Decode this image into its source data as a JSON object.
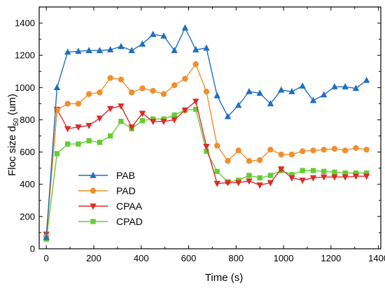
{
  "chart_data": {
    "type": "line",
    "title": "",
    "xlabel": "Time (s)",
    "ylabel_main": "Floc size d",
    "ylabel_sub": "50",
    "ylabel_unit": " (um)",
    "xlim": [
      -30,
      1410
    ],
    "ylim": [
      0,
      1500
    ],
    "xticks": [
      0,
      200,
      400,
      600,
      800,
      1000,
      1200,
      1400
    ],
    "yticks": [
      0,
      200,
      400,
      600,
      800,
      1000,
      1200,
      1400
    ],
    "grid": false,
    "legend_position": "center-left",
    "x": [
      0,
      45,
      90,
      135,
      180,
      225,
      270,
      315,
      360,
      405,
      450,
      495,
      540,
      585,
      630,
      675,
      720,
      765,
      810,
      855,
      900,
      945,
      990,
      1035,
      1080,
      1125,
      1170,
      1215,
      1260,
      1305,
      1350
    ],
    "series": [
      {
        "name": "PAB",
        "color": "#1f6fbf",
        "marker": "triangle-up",
        "values": [
          70,
          1000,
          1220,
          1225,
          1230,
          1230,
          1235,
          1255,
          1230,
          1270,
          1330,
          1320,
          1230,
          1370,
          1235,
          1245,
          950,
          820,
          890,
          975,
          965,
          900,
          985,
          975,
          1010,
          920,
          955,
          1005,
          1005,
          995,
          1045
        ]
      },
      {
        "name": "PAD",
        "color": "#f28e2b",
        "marker": "circle",
        "values": [
          75,
          860,
          900,
          900,
          960,
          970,
          1060,
          1050,
          970,
          995,
          980,
          960,
          1015,
          1055,
          1145,
          975,
          640,
          545,
          610,
          545,
          550,
          615,
          585,
          585,
          605,
          610,
          615,
          620,
          610,
          625,
          615
        ]
      },
      {
        "name": "CPAA",
        "color": "#dd2a2a",
        "marker": "triangle-down",
        "values": [
          90,
          865,
          745,
          755,
          765,
          810,
          870,
          885,
          755,
          840,
          790,
          790,
          800,
          860,
          915,
          635,
          405,
          410,
          410,
          420,
          395,
          410,
          495,
          440,
          425,
          440,
          445,
          445,
          445,
          450,
          450
        ]
      },
      {
        "name": "CPAD",
        "color": "#66cc33",
        "marker": "square",
        "values": [
          60,
          590,
          650,
          650,
          670,
          660,
          700,
          790,
          745,
          795,
          805,
          805,
          830,
          860,
          865,
          605,
          480,
          415,
          425,
          455,
          440,
          455,
          485,
          460,
          485,
          485,
          480,
          475,
          470,
          470,
          470
        ]
      }
    ]
  }
}
